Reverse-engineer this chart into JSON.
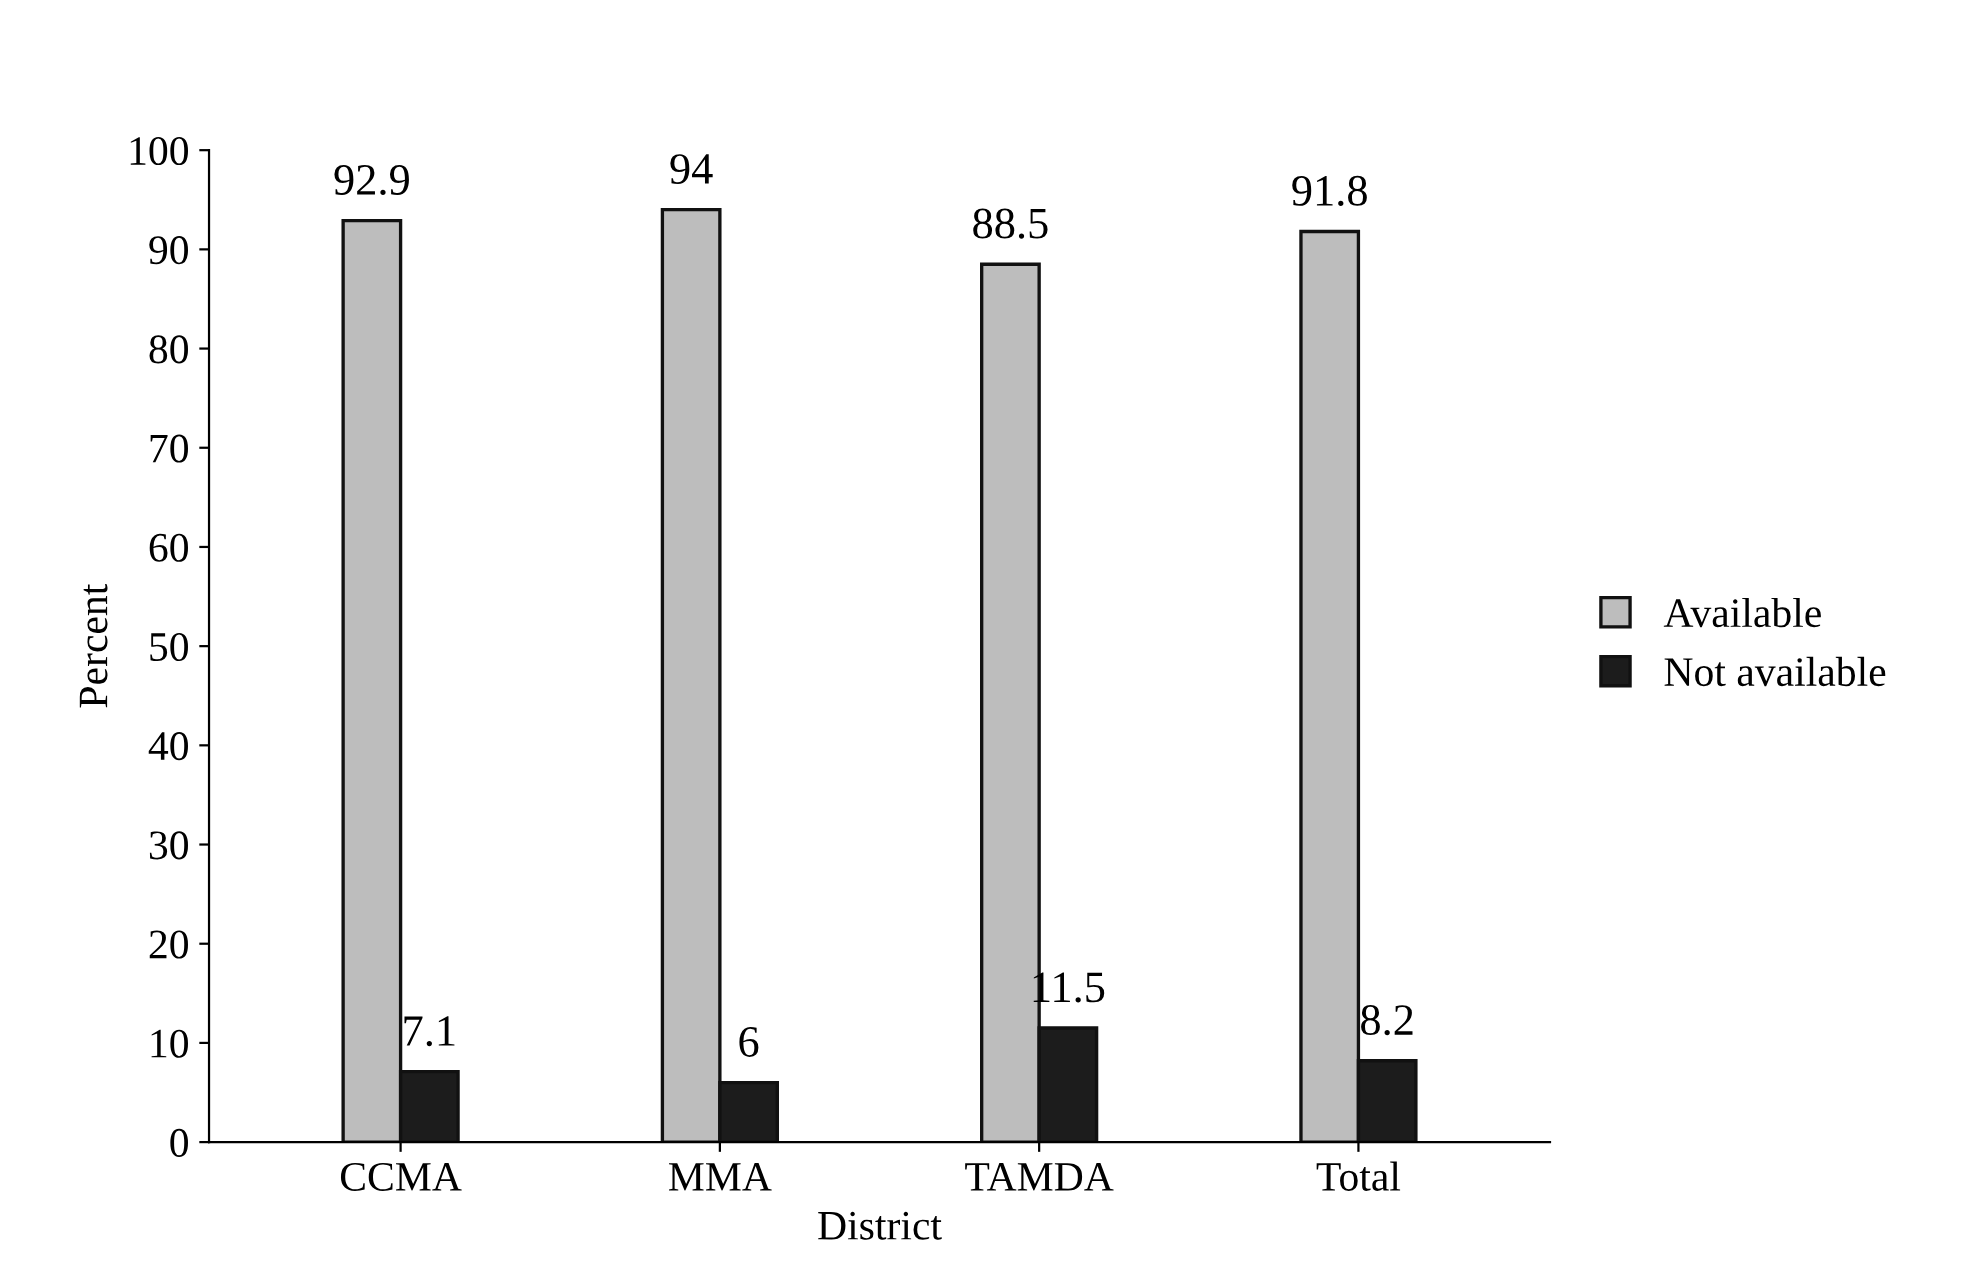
{
  "chart_data": {
    "type": "bar",
    "xlabel": "District",
    "ylabel": "Percent",
    "categories": [
      "CCMA",
      "MMA",
      "TAMDA",
      "Total"
    ],
    "series": [
      {
        "name": "Available",
        "color": "#bdbdbd",
        "values": [
          92.9,
          94,
          88.5,
          91.8
        ]
      },
      {
        "name": "Not available",
        "color": "#1c1c1c",
        "values": [
          7.1,
          6,
          11.5,
          8.2
        ]
      }
    ],
    "ylim": [
      0,
      100
    ],
    "yticks": [
      0,
      10,
      20,
      30,
      40,
      50,
      60,
      70,
      80,
      90,
      100
    ],
    "data_labels": true,
    "legend": "right",
    "grid": false
  }
}
